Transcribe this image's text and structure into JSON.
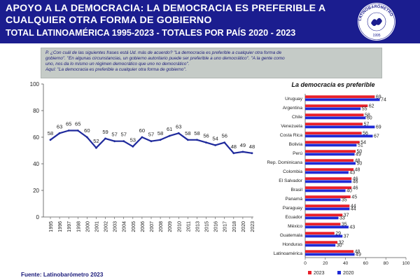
{
  "header": {
    "line1": "APOYO A LA DEMOCRACIA:  LA DEMOCRACIA ES PREFERIBLE A",
    "line2": "CUALQUIER  OTRA FORMA DE GOBIERNO",
    "line3": "TOTAL LATINOAMÉRICA 1995-2023 - TOTALES POR PAÍS 2020 - 2023"
  },
  "logo": {
    "text": "LATINOBARÓMETRO",
    "year": "1995"
  },
  "question": {
    "lines": [
      "P. ¿Con cuál de las siguientes frases está Ud. más de acuerdo? \"La democracia es preferible a cualquier otra forma de",
      "gobierno\". \"En algunas circunstancias, un gobierno autoritario puede ser preferible a uno democrático\". \"A la gente como",
      "uno, nos da lo mismo un régimen democrático que uno no democrático\".",
      "Aquí: \"La democracia es preferible a cualquier otra forma de gobierno\"."
    ]
  },
  "source": "Fuente: Latinobarómetro 2023",
  "chart_data": [
    {
      "type": "line",
      "title": "",
      "xlabel": "",
      "ylabel": "",
      "ylim": [
        0,
        100
      ],
      "yticks": [
        0,
        20,
        40,
        60,
        80,
        100
      ],
      "grid": false,
      "x": [
        "1995",
        "1996",
        "1997",
        "1998",
        "2000",
        "2001",
        "2002",
        "2003",
        "2004",
        "2005",
        "2006",
        "2007",
        "2008",
        "2009",
        "2010",
        "2011",
        "2013",
        "2015",
        "2016",
        "2017",
        "2018",
        "2020",
        "2023"
      ],
      "series": [
        {
          "values": [
            58,
            63,
            65,
            65,
            60,
            52,
            59,
            57,
            57,
            53,
            60,
            57,
            58,
            61,
            63,
            58,
            58,
            56,
            54,
            56,
            48,
            49,
            48
          ],
          "color": "#1f2a9c"
        }
      ]
    },
    {
      "type": "bar",
      "orientation": "horizontal",
      "title": "La democracia es preferible",
      "categories": [
        "Uruguay",
        "Argentina",
        "Chile",
        "Venezuela",
        "Costa Rica",
        "Bolivia",
        "Perú",
        "Rep. Dominicana",
        "Colombia",
        "El Salvador",
        "Brasil",
        "Panamá",
        "Paraguay",
        "Ecuador",
        "México",
        "Guatemala",
        "Honduras",
        "Latinoamérica"
      ],
      "xlim": [
        0,
        100
      ],
      "xticks": [
        0,
        20,
        40,
        60,
        80,
        100
      ],
      "legend_position": "bottom",
      "series": [
        {
          "name": "2023",
          "color": "#e8202a",
          "values": [
            69,
            62,
            58,
            57,
            56,
            54,
            50,
            48,
            48,
            46,
            46,
            45,
            44,
            37,
            35,
            29,
            32,
            48
          ]
        },
        {
          "name": "2020",
          "color": "#1f2ad6",
          "values": [
            74,
            55,
            60,
            69,
            67,
            51,
            49,
            50,
            43,
            46,
            40,
            35,
            44,
            33,
            43,
            37,
            30,
            49
          ]
        }
      ]
    }
  ]
}
